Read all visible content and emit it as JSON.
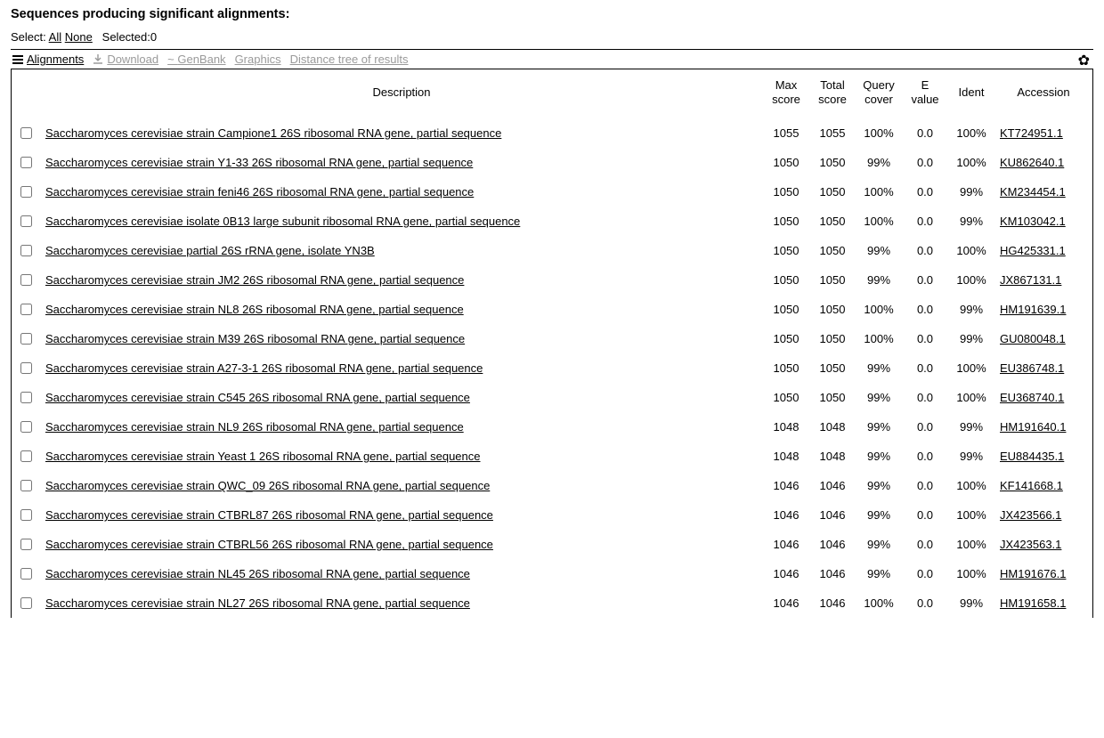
{
  "header": {
    "title": "Sequences producing significant alignments:",
    "select_label": "Select:",
    "all_label": "All",
    "none_label": "None",
    "selected_label": "Selected:0"
  },
  "toolbar": {
    "alignments_label": "Alignments",
    "download_label": "Download",
    "genbank_label": "GenBank",
    "graphics_label": "Graphics",
    "distance_label": "Distance tree of results",
    "gear_glyph": "✿"
  },
  "columns": {
    "description": "Description",
    "max_score_1": "Max",
    "max_score_2": "score",
    "total_score_1": "Total",
    "total_score_2": "score",
    "query_cover_1": "Query",
    "query_cover_2": "cover",
    "e_value_1": "E",
    "e_value_2": "value",
    "ident": "Ident",
    "accession": "Accession"
  },
  "rows": [
    {
      "desc": "Saccharomyces cerevisiae strain Campione1 26S ribosomal RNA gene, partial sequence",
      "max": "1055",
      "total": "1055",
      "cover": "100%",
      "evalue": "0.0",
      "ident": "100%",
      "acc": "KT724951.1"
    },
    {
      "desc": "Saccharomyces cerevisiae strain Y1-33 26S ribosomal RNA gene, partial sequence",
      "max": "1050",
      "total": "1050",
      "cover": "99%",
      "evalue": "0.0",
      "ident": "100%",
      "acc": "KU862640.1"
    },
    {
      "desc": "Saccharomyces cerevisiae strain feni46 26S ribosomal RNA gene, partial sequence",
      "max": "1050",
      "total": "1050",
      "cover": "100%",
      "evalue": "0.0",
      "ident": "99%",
      "acc": "KM234454.1"
    },
    {
      "desc": "Saccharomyces cerevisiae isolate 0B13 large subunit ribosomal RNA gene, partial sequence",
      "max": "1050",
      "total": "1050",
      "cover": "100%",
      "evalue": "0.0",
      "ident": "99%",
      "acc": "KM103042.1"
    },
    {
      "desc": "Saccharomyces cerevisiae partial 26S rRNA gene, isolate YN3B",
      "max": "1050",
      "total": "1050",
      "cover": "99%",
      "evalue": "0.0",
      "ident": "100%",
      "acc": "HG425331.1"
    },
    {
      "desc": "Saccharomyces cerevisiae strain JM2 26S ribosomal RNA gene, partial sequence",
      "max": "1050",
      "total": "1050",
      "cover": "99%",
      "evalue": "0.0",
      "ident": "100%",
      "acc": "JX867131.1"
    },
    {
      "desc": "Saccharomyces cerevisiae strain NL8 26S ribosomal RNA gene, partial sequence",
      "max": "1050",
      "total": "1050",
      "cover": "100%",
      "evalue": "0.0",
      "ident": "99%",
      "acc": "HM191639.1"
    },
    {
      "desc": "Saccharomyces cerevisiae strain M39 26S ribosomal RNA gene, partial sequence",
      "max": "1050",
      "total": "1050",
      "cover": "100%",
      "evalue": "0.0",
      "ident": "99%",
      "acc": "GU080048.1"
    },
    {
      "desc": "Saccharomyces cerevisiae strain A27-3-1 26S ribosomal RNA gene, partial sequence",
      "max": "1050",
      "total": "1050",
      "cover": "99%",
      "evalue": "0.0",
      "ident": "100%",
      "acc": "EU386748.1"
    },
    {
      "desc": "Saccharomyces cerevisiae strain C545 26S ribosomal RNA gene, partial sequence",
      "max": "1050",
      "total": "1050",
      "cover": "99%",
      "evalue": "0.0",
      "ident": "100%",
      "acc": "EU368740.1"
    },
    {
      "desc": "Saccharomyces cerevisiae strain NL9 26S ribosomal RNA gene, partial sequence",
      "max": "1048",
      "total": "1048",
      "cover": "99%",
      "evalue": "0.0",
      "ident": "99%",
      "acc": "HM191640.1"
    },
    {
      "desc": "Saccharomyces cerevisiae strain Yeast 1 26S ribosomal RNA gene, partial sequence",
      "max": "1048",
      "total": "1048",
      "cover": "99%",
      "evalue": "0.0",
      "ident": "99%",
      "acc": "EU884435.1"
    },
    {
      "desc": "Saccharomyces cerevisiae strain QWC_09 26S ribosomal RNA gene, partial sequence",
      "max": "1046",
      "total": "1046",
      "cover": "99%",
      "evalue": "0.0",
      "ident": "100%",
      "acc": "KF141668.1"
    },
    {
      "desc": "Saccharomyces cerevisiae strain CTBRL87 26S ribosomal RNA gene, partial sequence",
      "max": "1046",
      "total": "1046",
      "cover": "99%",
      "evalue": "0.0",
      "ident": "100%",
      "acc": "JX423566.1"
    },
    {
      "desc": "Saccharomyces cerevisiae strain CTBRL56 26S ribosomal RNA gene, partial sequence",
      "max": "1046",
      "total": "1046",
      "cover": "99%",
      "evalue": "0.0",
      "ident": "100%",
      "acc": "JX423563.1"
    },
    {
      "desc": "Saccharomyces cerevisiae strain NL45 26S ribosomal RNA gene, partial sequence",
      "max": "1046",
      "total": "1046",
      "cover": "99%",
      "evalue": "0.0",
      "ident": "100%",
      "acc": "HM191676.1"
    },
    {
      "desc": "Saccharomyces cerevisiae strain NL27 26S ribosomal RNA gene, partial sequence",
      "max": "1046",
      "total": "1046",
      "cover": "100%",
      "evalue": "0.0",
      "ident": "99%",
      "acc": "HM191658.1"
    }
  ]
}
